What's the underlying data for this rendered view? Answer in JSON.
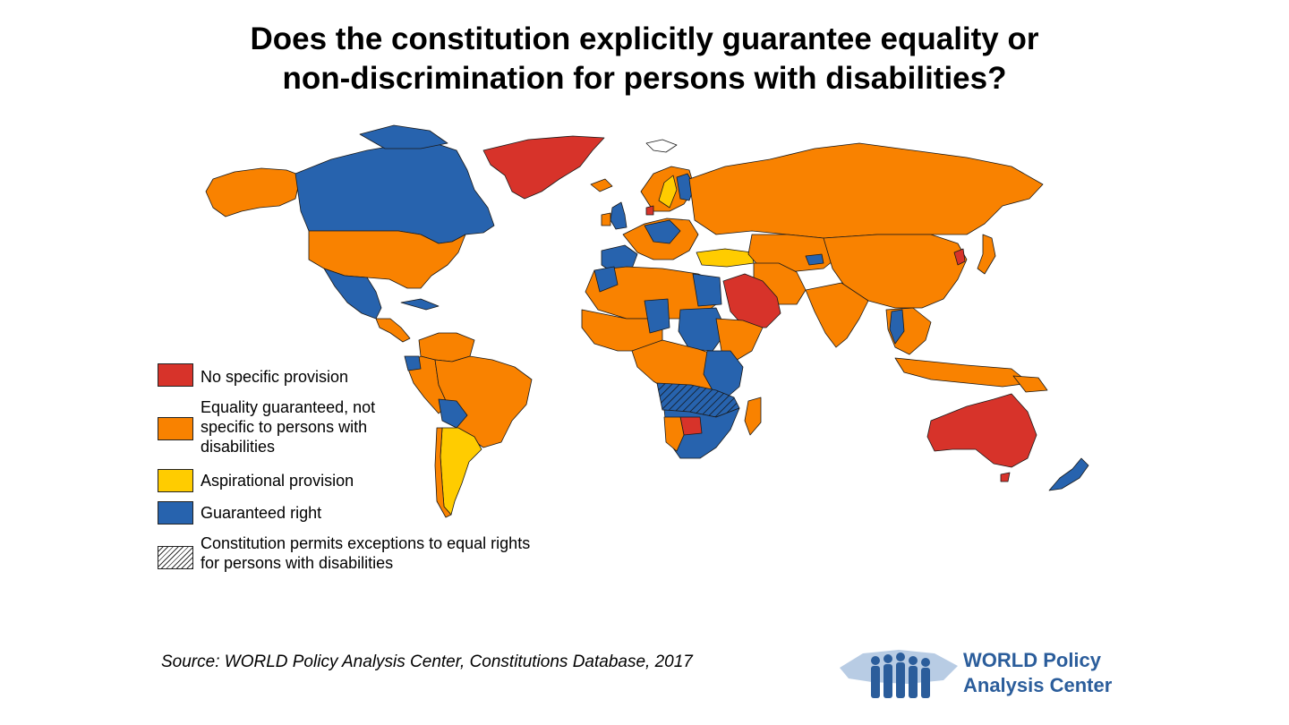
{
  "title": {
    "line1": "Does the constitution explicitly guarantee equality or",
    "line2": "non-discrimination for persons with disabilities?"
  },
  "legend": {
    "items": [
      {
        "label": "No specific provision",
        "color": "#D7332A"
      },
      {
        "label": "Equality guaranteed, not specific to persons with disabilities",
        "color": "#F98200"
      },
      {
        "label": "Aspirational provision",
        "color": "#FFCC00"
      },
      {
        "label": "Guaranteed right",
        "color": "#2763AE"
      },
      {
        "label": "Constitution permits exceptions to equal rights for persons with disabilities",
        "color": "hatched"
      }
    ]
  },
  "source": "Source: WORLD Policy Analysis Center, Constitutions Database, 2017",
  "logo": {
    "line1": "WORLD Policy",
    "line2": "Analysis Center",
    "color": "#2B5D9B"
  },
  "colors": {
    "red": "#D7332A",
    "orange": "#F98200",
    "yellow": "#FFCC00",
    "blue": "#2763AE"
  }
}
